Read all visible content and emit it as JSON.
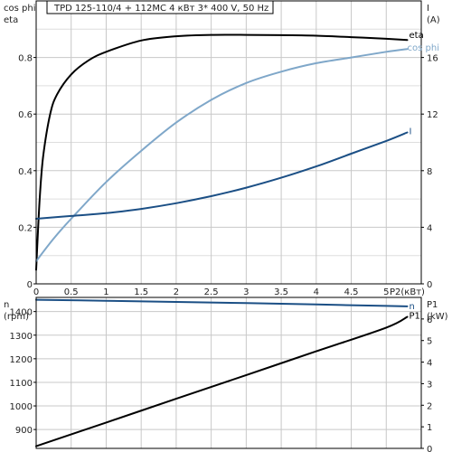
{
  "header": {
    "title": "TPD 125-110/4 + 112MC    4 кВт   3* 400 V, 50 Hz"
  },
  "colors": {
    "eta": "#000000",
    "cos_phi": "#7fa7c9",
    "current": "#1b4f85",
    "speed": "#1b4f85",
    "p1": "#000000",
    "grid": "#c8c8c8"
  },
  "chart_data": [
    {
      "type": "line",
      "x_title": "P2(кВт)",
      "x_ticks": [
        "0",
        "0.5",
        "1",
        "1.5",
        "2",
        "2.5",
        "3",
        "3.5",
        "4",
        "4.5",
        "5"
      ],
      "xlim": [
        0,
        5.5
      ],
      "left_axis": {
        "titles": [
          "cos phi",
          "eta"
        ],
        "ticks": [
          "0",
          "0.2",
          "0.4",
          "0.6",
          "0.8"
        ],
        "ylim": [
          0,
          1.0
        ]
      },
      "right_axis": {
        "titles": [
          "I",
          "(A)"
        ],
        "ticks": [
          "0",
          "4",
          "8",
          "12",
          "16"
        ],
        "ylim": [
          0,
          20
        ]
      },
      "grid": true,
      "series": [
        {
          "name": "eta",
          "axis": "left",
          "color": "#000000",
          "x": [
            0,
            0.05,
            0.1,
            0.2,
            0.3,
            0.5,
            0.75,
            1.0,
            1.5,
            2.0,
            2.5,
            3.0,
            3.5,
            4.0,
            4.5,
            5.0,
            5.3
          ],
          "y": [
            0.05,
            0.3,
            0.45,
            0.6,
            0.67,
            0.74,
            0.79,
            0.82,
            0.86,
            0.875,
            0.88,
            0.88,
            0.879,
            0.877,
            0.872,
            0.866,
            0.862
          ]
        },
        {
          "name": "cos phi",
          "axis": "left",
          "color": "#7fa7c9",
          "x": [
            0,
            0.25,
            0.5,
            1.0,
            1.5,
            2.0,
            2.5,
            3.0,
            3.5,
            4.0,
            4.5,
            5.0,
            5.3
          ],
          "y": [
            0.08,
            0.16,
            0.23,
            0.36,
            0.47,
            0.57,
            0.65,
            0.71,
            0.75,
            0.78,
            0.8,
            0.82,
            0.83
          ]
        },
        {
          "name": "I",
          "axis": "right",
          "color": "#1b4f85",
          "x": [
            0,
            0.5,
            1.0,
            1.5,
            2.0,
            2.5,
            3.0,
            3.5,
            4.0,
            4.5,
            5.0,
            5.3
          ],
          "y": [
            4.6,
            4.8,
            5.0,
            5.3,
            5.7,
            6.2,
            6.8,
            7.5,
            8.3,
            9.2,
            10.1,
            10.7
          ]
        }
      ]
    },
    {
      "type": "line",
      "x_title": "P2(кВт)",
      "xlim": [
        0,
        5.5
      ],
      "left_axis": {
        "titles": [
          "n",
          "(rpm)"
        ],
        "ticks": [
          "900",
          "1000",
          "1100",
          "1200",
          "1300",
          "1400"
        ],
        "ylim": [
          820,
          1460
        ]
      },
      "right_axis": {
        "titles": [
          "P1",
          "(kW)"
        ],
        "ticks": [
          "0",
          "1",
          "2",
          "3",
          "4",
          "5",
          "6"
        ],
        "ylim": [
          0,
          7
        ]
      },
      "grid": true,
      "series": [
        {
          "name": "n",
          "axis": "left",
          "color": "#1b4f85",
          "x": [
            0,
            1,
            2,
            3,
            4,
            5,
            5.3
          ],
          "y": [
            1450,
            1446,
            1441,
            1436,
            1430,
            1424,
            1422
          ]
        },
        {
          "name": "P1",
          "axis": "right",
          "color": "#000000",
          "x": [
            0,
            1,
            2,
            3,
            4,
            5,
            5.3
          ],
          "y": [
            0.1,
            1.2,
            2.3,
            3.4,
            4.5,
            5.6,
            6.1
          ]
        }
      ]
    }
  ]
}
